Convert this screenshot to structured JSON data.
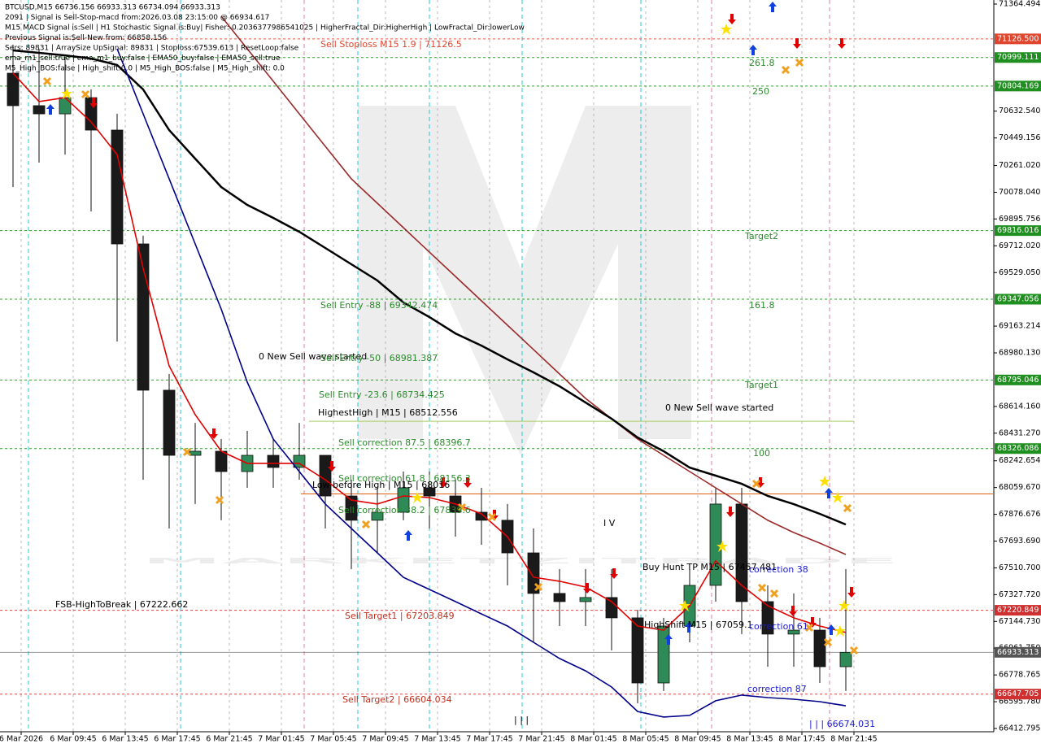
{
  "chart_data": {
    "type": "candlestick",
    "info": [
      "BTCUSD,M15  66736.156 66933.313 66734.094 66933.313",
      "2091 | Signal is Sell-Stop-macd from:2026.03.08 23:15:00 @ 66934.617",
      "M15 MACD Signal is:Sell | H1 Stochastic Signal is:Buy| Fisher:-0.2036377986541025 | HigherFractal_Dir:HigherHigh | LowFractal_Dir:lowerLow",
      "Previous Signal is:Sell-New from: 66858.156",
      "Sers: 89831 | ArraySize UpSignal: 89831 | Stoploss:67539.613 | ResetLoop:false",
      "ema_m1_sell:true | ema_m1_buy:false | EMA50_buy:false | EMA50_sell:true",
      "M5_High_BOS:false | High_shift:0.0 | M5_High_BOS:false | M5_High_shift: 0.0"
    ],
    "watermark": "MARKETZITRADE",
    "ylim": [
      66390.5,
      71392.3
    ],
    "yticks": [
      71364.494,
      {
        "value": 70632.54,
        "label": "70632.540"
      },
      70449.156,
      {
        "value": 70261.02,
        "label": "70261.020"
      },
      {
        "value": 70078.04,
        "label": "70078.040"
      },
      69895.756,
      {
        "value": 69712.02,
        "label": "69712.020"
      },
      {
        "value": 69529.05,
        "label": "69529.050"
      },
      69163.214,
      {
        "value": 68980.13,
        "label": "68980.130"
      },
      {
        "value": 68614.16,
        "label": "68614.160"
      },
      {
        "value": 68431.27,
        "label": "68431.270"
      },
      68242.654,
      {
        "value": 68059.67,
        "label": "68059.670"
      },
      67876.676,
      {
        "value": 67693.69,
        "label": "67693.690"
      },
      {
        "value": 67510.7,
        "label": "67510.700"
      },
      {
        "value": 67327.72,
        "label": "67327.720"
      },
      {
        "value": 67144.73,
        "label": "67144.730"
      },
      {
        "value": 66961.75,
        "label": "66961.750"
      },
      66778.765,
      {
        "value": 66595.78,
        "label": "66595.780"
      },
      66412.795
    ],
    "x_labels": [
      "6 Mar 2026",
      "6 Mar 09:45",
      "6 Mar 13:45",
      "6 Mar 17:45",
      "6 Mar 21:45",
      "7 Mar 01:45",
      "7 Mar 05:45",
      "7 Mar 09:45",
      "7 Mar 13:45",
      "7 Mar 17:45",
      "7 Mar 21:45",
      "8 Mar 01:45",
      "8 Mar 05:45",
      "8 Mar 09:45",
      "8 Mar 13:45",
      "8 Mar 17:45",
      "8 Mar 21:45"
    ],
    "up_color": "#2e8b57",
    "down_color": "#1a1a1a",
    "open": [
      70892,
      70670,
      70614,
      70725,
      70503,
      69725,
      68725,
      68280,
      68308,
      68169,
      68280,
      68197,
      68280,
      68002,
      67836,
      67891,
      68058,
      68002,
      67891,
      67836,
      67613,
      67336,
      67280,
      67308,
      67169,
      66724,
      67113,
      67391,
      67947,
      67280,
      67058,
      67085,
      66835
    ],
    "high": [
      71087,
      71059,
      71003,
      70781,
      70614,
      69781,
      68836,
      68502,
      68391,
      68447,
      68391,
      68502,
      68280,
      68113,
      68058,
      68169,
      68169,
      68113,
      68058,
      67947,
      67780,
      67502,
      67502,
      67502,
      67224,
      67169,
      67502,
      68058,
      68058,
      67391,
      67336,
      67169,
      67502
    ],
    "low": [
      70114,
      70281,
      70336,
      69947,
      69058,
      68113,
      67780,
      67947,
      67836,
      68058,
      68058,
      68113,
      67780,
      67502,
      67613,
      67836,
      67780,
      67724,
      67669,
      67391,
      67002,
      67113,
      67113,
      66946,
      66585,
      66669,
      67002,
      67280,
      67058,
      66835,
      66835,
      66724,
      66669
    ],
    "close": [
      70670,
      70614,
      70725,
      70503,
      69725,
      68725,
      68280,
      68308,
      68169,
      68280,
      68197,
      68280,
      68002,
      67836,
      67891,
      68058,
      68002,
      67891,
      67836,
      67613,
      67336,
      67280,
      67308,
      67169,
      66724,
      67113,
      67391,
      67947,
      67280,
      67058,
      67085,
      66835,
      66933.313
    ],
    "series": [
      {
        "color": "#e00000",
        "values": [
          70892,
          70698,
          70725,
          70559,
          70336,
          69558,
          68891,
          68558,
          68308,
          68225,
          68225,
          68225,
          68113,
          67974,
          67947,
          68002,
          67991,
          67947,
          67880,
          67724,
          67447,
          67419,
          67380,
          67280,
          67113,
          67085,
          67252,
          67558,
          67391,
          67252,
          67169,
          67113,
          67069
        ]
      },
      {
        "color": "#9b2a2a",
        "values": [
          null,
          null,
          null,
          null,
          null,
          null,
          null,
          null,
          71281,
          71059,
          70837,
          70614,
          70392,
          70170,
          70003,
          69836,
          69669,
          69503,
          69336,
          69169,
          69003,
          68836,
          68669,
          68530,
          68391,
          68280,
          68169,
          68058,
          67947,
          67836,
          67752,
          67680,
          67602
        ]
      },
      {
        "color": "#000000",
        "values": [
          71048,
          71031,
          71014,
          70992,
          70948,
          70781,
          70503,
          70308,
          70114,
          69992,
          69903,
          69808,
          69697,
          69586,
          69475,
          69325,
          69225,
          69113,
          69030,
          68936,
          68847,
          68752,
          68641,
          68530,
          68402,
          68308,
          68196,
          68141,
          68085,
          68002,
          67946,
          67880,
          67807
        ]
      },
      {
        "color": "#00008b",
        "values": [
          null,
          null,
          null,
          null,
          71059,
          70614,
          70170,
          69725,
          69280,
          68780,
          68391,
          68169,
          67947,
          67780,
          67613,
          67446,
          67363,
          67280,
          67196,
          67113,
          67002,
          66891,
          66807,
          66696,
          66529,
          66491,
          66502,
          66602,
          66641,
          66624,
          66613,
          66596,
          66568
        ]
      }
    ],
    "levels": [
      {
        "value": 71126.5,
        "label": "71126.500",
        "color": "#e0452d"
      },
      {
        "value": 70999.111,
        "color": "#1f8f1f"
      },
      {
        "value": 70804.169,
        "color": "#1f8f1f"
      },
      {
        "value": 69816.016,
        "color": "#1f8f1f"
      },
      {
        "value": 69347.056,
        "color": "#1f8f1f"
      },
      {
        "value": 68795.046,
        "color": "#1f8f1f"
      },
      {
        "value": 68326.086,
        "color": "#1f8f1f"
      },
      {
        "value": 67220.849,
        "color": "#d03030"
      },
      {
        "value": 66933.313,
        "color": "#555555"
      },
      {
        "value": 66647.705,
        "color": "#d03030"
      }
    ],
    "segments": [
      {
        "value": 68512.556,
        "color": "#a8d060"
      },
      {
        "value": 68016,
        "color": "#e06010"
      }
    ],
    "annotations": [
      {
        "text": "Sell Stoploss M15 1.9 | 71126.5",
        "color": "#e0452d"
      },
      {
        "text": "261.8",
        "color": "#2a8a2a"
      },
      {
        "text": "250",
        "color": "#2a8a2a"
      },
      {
        "text": "Target2",
        "color": "#2a8a2a"
      },
      {
        "text": "Sell Entry -88 | 69342.474",
        "color": "#2a8a2a"
      },
      {
        "text": "161.8",
        "color": "#2a8a2a"
      },
      {
        "text": "0 New Sell wave started",
        "color": "#000000"
      },
      {
        "text": "Sell Entry -50 | 68981.387",
        "color": "#2a8a2a"
      },
      {
        "text": "Target1",
        "color": "#2a8a2a"
      },
      {
        "text": "0 New Sell wave started",
        "color": "#000000"
      },
      {
        "text": "Sell Entry -23.6 | 68734.425",
        "color": "#2a8a2a"
      },
      {
        "text": "HighestHigh | M15 | 68512.556",
        "color": "#000000"
      },
      {
        "text": "Sell correction 87.5 | 68396.7",
        "color": "#2a8a2a"
      },
      {
        "text": "100",
        "color": "#2a8a2a"
      },
      {
        "text": "Sell correction 61.8 | 68156.3",
        "color": "#2a8a2a"
      },
      {
        "text": "Low before High | M15 | 68016",
        "color": "#000000"
      },
      {
        "text": "Sell correction 38.2 | 67839.6",
        "color": "#2a8a2a"
      },
      {
        "text": "I V",
        "color": "#000000"
      },
      {
        "text": "Buy Hunt TP M15 | 67457.481",
        "color": "#000000"
      },
      {
        "text": "correction 38",
        "color": "#1a1ad0"
      },
      {
        "text": "FSB-HighToBreak | 67222.662",
        "color": "#000000"
      },
      {
        "text": "Sell Target1 | 67203.849",
        "color": "#c03020"
      },
      {
        "text": "HighShift M15 | 67059.1",
        "color": "#000000"
      },
      {
        "text": "correction 61",
        "color": "#1a1ad0"
      },
      {
        "text": "correction 87",
        "color": "#1a1ad0"
      },
      {
        "text": "Sell Target2 | 66604.034",
        "color": "#c03020"
      },
      {
        "text": "| | | 66674.031",
        "color": "#1a1ad0"
      },
      {
        "text": "| | |",
        "color": "#000000"
      }
    ]
  }
}
